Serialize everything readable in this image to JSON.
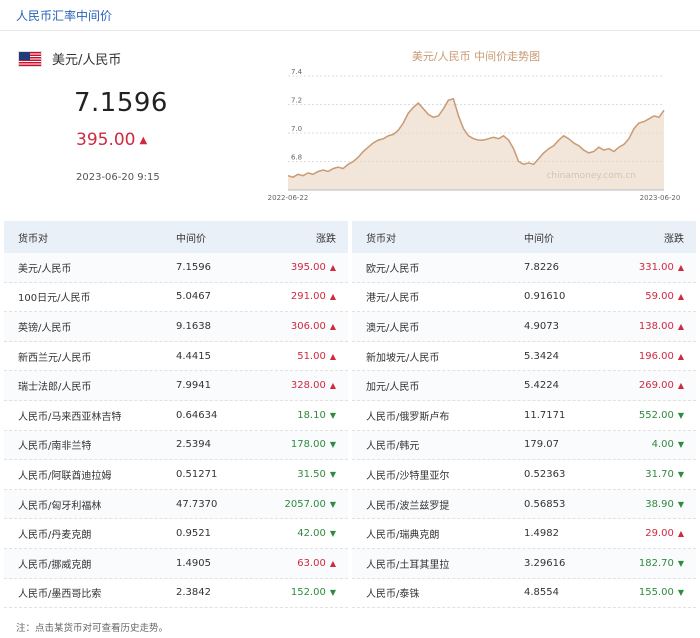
{
  "header": {
    "title": "人民币汇率中间价"
  },
  "featured": {
    "pair": "美元/人民币",
    "rate": "7.1596",
    "change": "395.00",
    "change_arrow": "▲",
    "time": "2023-06-20 9:15",
    "flag_icon": "us-flag-icon"
  },
  "chart_data": {
    "type": "area",
    "title": "美元/人民币 中间价走势图",
    "watermark": "chinamoney.com.cn",
    "xlabel": "",
    "ylabel": "",
    "x_tick_labels": [
      "2022-06-22",
      "2023-06-20"
    ],
    "y_tick_labels": [
      "6.8",
      "7.0",
      "7.2",
      "7.4"
    ],
    "ylim": [
      6.6,
      7.4
    ],
    "grid": true,
    "line_color": "#c99a73",
    "fill_color": "#e9d3bf",
    "series": [
      {
        "values": [
          6.7,
          6.69,
          6.71,
          6.7,
          6.72,
          6.71,
          6.73,
          6.74,
          6.73,
          6.75,
          6.76,
          6.75,
          6.78,
          6.8,
          6.83,
          6.87,
          6.9,
          6.93,
          6.95,
          6.96,
          6.98,
          6.99,
          7.02,
          7.07,
          7.14,
          7.18,
          7.21,
          7.17,
          7.13,
          7.11,
          7.12,
          7.17,
          7.23,
          7.24,
          7.12,
          7.03,
          6.98,
          6.96,
          6.95,
          6.95,
          6.96,
          6.97,
          6.96,
          6.98,
          6.95,
          6.89,
          6.8,
          6.78,
          6.79,
          6.78,
          6.82,
          6.86,
          6.89,
          6.91,
          6.95,
          6.98,
          6.96,
          6.93,
          6.91,
          6.88,
          6.86,
          6.87,
          6.9,
          6.88,
          6.89,
          6.87,
          6.9,
          6.92,
          6.96,
          7.03,
          7.07,
          7.08,
          7.1,
          7.12,
          7.11,
          7.16
        ]
      }
    ]
  },
  "table_headers": {
    "pair": "货币对",
    "mid": "中间价",
    "change": "涨跌"
  },
  "left_rows": [
    {
      "pair": "美元/人民币",
      "mid": "7.1596",
      "change": "395.00",
      "dir": "up"
    },
    {
      "pair": "100日元/人民币",
      "mid": "5.0467",
      "change": "291.00",
      "dir": "up"
    },
    {
      "pair": "英镑/人民币",
      "mid": "9.1638",
      "change": "306.00",
      "dir": "up"
    },
    {
      "pair": "新西兰元/人民币",
      "mid": "4.4415",
      "change": "51.00",
      "dir": "up"
    },
    {
      "pair": "瑞士法郎/人民币",
      "mid": "7.9941",
      "change": "328.00",
      "dir": "up"
    },
    {
      "pair": "人民币/马来西亚林吉特",
      "mid": "0.64634",
      "change": "18.10",
      "dir": "down"
    },
    {
      "pair": "人民币/南非兰特",
      "mid": "2.5394",
      "change": "178.00",
      "dir": "down"
    },
    {
      "pair": "人民币/阿联酋迪拉姆",
      "mid": "0.51271",
      "change": "31.50",
      "dir": "down"
    },
    {
      "pair": "人民币/匈牙利福林",
      "mid": "47.7370",
      "change": "2057.00",
      "dir": "down"
    },
    {
      "pair": "人民币/丹麦克朗",
      "mid": "0.9521",
      "change": "42.00",
      "dir": "down"
    },
    {
      "pair": "人民币/挪威克朗",
      "mid": "1.4905",
      "change": "63.00",
      "dir": "up"
    },
    {
      "pair": "人民币/墨西哥比索",
      "mid": "2.3842",
      "change": "152.00",
      "dir": "down"
    }
  ],
  "right_rows": [
    {
      "pair": "欧元/人民币",
      "mid": "7.8226",
      "change": "331.00",
      "dir": "up"
    },
    {
      "pair": "港元/人民币",
      "mid": "0.91610",
      "change": "59.00",
      "dir": "up"
    },
    {
      "pair": "澳元/人民币",
      "mid": "4.9073",
      "change": "138.00",
      "dir": "up"
    },
    {
      "pair": "新加坡元/人民币",
      "mid": "5.3424",
      "change": "196.00",
      "dir": "up"
    },
    {
      "pair": "加元/人民币",
      "mid": "5.4224",
      "change": "269.00",
      "dir": "up"
    },
    {
      "pair": "人民币/俄罗斯卢布",
      "mid": "11.7171",
      "change": "552.00",
      "dir": "down"
    },
    {
      "pair": "人民币/韩元",
      "mid": "179.07",
      "change": "4.00",
      "dir": "down"
    },
    {
      "pair": "人民币/沙特里亚尔",
      "mid": "0.52363",
      "change": "31.70",
      "dir": "down"
    },
    {
      "pair": "人民币/波兰兹罗提",
      "mid": "0.56853",
      "change": "38.90",
      "dir": "down"
    },
    {
      "pair": "人民币/瑞典克朗",
      "mid": "1.4982",
      "change": "29.00",
      "dir": "up"
    },
    {
      "pair": "人民币/土耳其里拉",
      "mid": "3.29616",
      "change": "182.70",
      "dir": "down"
    },
    {
      "pair": "人民币/泰铢",
      "mid": "4.8554",
      "change": "155.00",
      "dir": "down"
    }
  ],
  "arrows": {
    "up": "▲",
    "down": "▼"
  },
  "colors": {
    "up": "#cf2a3f",
    "down": "#2e8b3e",
    "title": "#2a63b8"
  },
  "note": "注：点击某货币对可查看历史走势。"
}
